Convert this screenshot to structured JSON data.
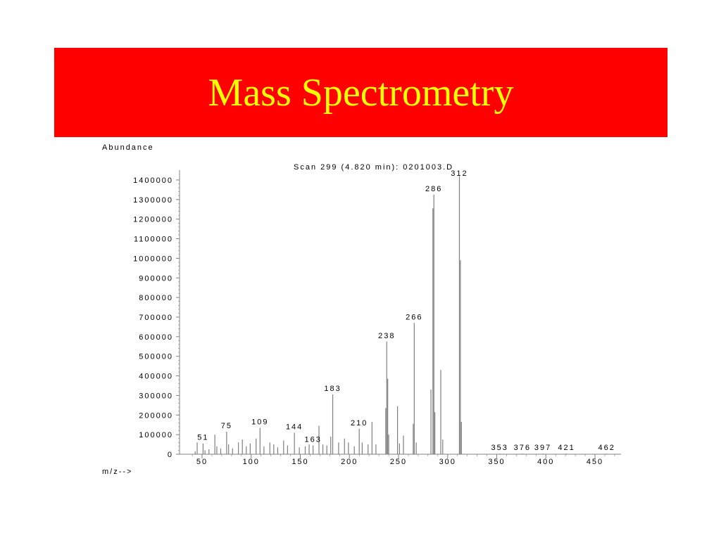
{
  "slide": {
    "title": "Mass Spectrometry"
  },
  "colors": {
    "title_bg": "#ff0000",
    "title_text": "#ffff00",
    "peak": "#7f7f7f",
    "axis": "#808080"
  },
  "chart_data": {
    "type": "bar",
    "subtitle": "Scan 299 (4.820 min): 0201003.D",
    "ylabel": "Abundance",
    "xlabel": "m/z-->",
    "xlim": [
      40,
      475
    ],
    "ylim": [
      0,
      1400000
    ],
    "x_ticks": [
      50,
      100,
      150,
      200,
      250,
      300,
      350,
      400,
      450
    ],
    "y_ticks": [
      0,
      100000,
      200000,
      300000,
      400000,
      500000,
      600000,
      700000,
      800000,
      900000,
      1000000,
      1100000,
      1200000,
      1300000,
      1400000
    ],
    "y_tick_labels": [
      "0",
      "100000",
      "200000",
      "300000",
      "400000",
      "500000",
      "600000",
      "700000",
      "800000",
      "900000",
      "1000000",
      "1100000",
      "1200000",
      "1300000",
      "1400000"
    ],
    "x_tick_labels": [
      "50",
      "100",
      "150",
      "200",
      "250",
      "300",
      "350",
      "400",
      "450"
    ],
    "peaks": [
      {
        "mz": 43,
        "abundance": 15000
      },
      {
        "mz": 45,
        "abundance": 60000
      },
      {
        "mz": 51,
        "abundance": 55000,
        "label": "51"
      },
      {
        "mz": 53,
        "abundance": 20000
      },
      {
        "mz": 57,
        "abundance": 25000
      },
      {
        "mz": 63,
        "abundance": 100000
      },
      {
        "mz": 65,
        "abundance": 40000
      },
      {
        "mz": 69,
        "abundance": 30000
      },
      {
        "mz": 75,
        "abundance": 115000,
        "label": "75"
      },
      {
        "mz": 77,
        "abundance": 50000
      },
      {
        "mz": 81,
        "abundance": 30000
      },
      {
        "mz": 87,
        "abundance": 60000
      },
      {
        "mz": 91,
        "abundance": 75000
      },
      {
        "mz": 95,
        "abundance": 40000
      },
      {
        "mz": 99,
        "abundance": 55000
      },
      {
        "mz": 105,
        "abundance": 80000
      },
      {
        "mz": 109,
        "abundance": 135000,
        "label": "109"
      },
      {
        "mz": 113,
        "abundance": 40000
      },
      {
        "mz": 119,
        "abundance": 60000
      },
      {
        "mz": 123,
        "abundance": 50000
      },
      {
        "mz": 127,
        "abundance": 35000
      },
      {
        "mz": 133,
        "abundance": 70000
      },
      {
        "mz": 137,
        "abundance": 45000
      },
      {
        "mz": 144,
        "abundance": 110000,
        "label": "144"
      },
      {
        "mz": 149,
        "abundance": 35000
      },
      {
        "mz": 155,
        "abundance": 40000
      },
      {
        "mz": 159,
        "abundance": 50000
      },
      {
        "mz": 163,
        "abundance": 45000,
        "label": "163"
      },
      {
        "mz": 169,
        "abundance": 145000
      },
      {
        "mz": 173,
        "abundance": 50000
      },
      {
        "mz": 177,
        "abundance": 45000
      },
      {
        "mz": 181,
        "abundance": 90000
      },
      {
        "mz": 183,
        "abundance": 305000,
        "label": "183"
      },
      {
        "mz": 189,
        "abundance": 60000
      },
      {
        "mz": 195,
        "abundance": 80000
      },
      {
        "mz": 199,
        "abundance": 60000
      },
      {
        "mz": 205,
        "abundance": 40000
      },
      {
        "mz": 210,
        "abundance": 130000,
        "label": "210"
      },
      {
        "mz": 213,
        "abundance": 60000
      },
      {
        "mz": 219,
        "abundance": 50000
      },
      {
        "mz": 223,
        "abundance": 165000
      },
      {
        "mz": 227,
        "abundance": 50000
      },
      {
        "mz": 237,
        "abundance": 235000
      },
      {
        "mz": 238,
        "abundance": 575000,
        "label": "238"
      },
      {
        "mz": 239,
        "abundance": 385000
      },
      {
        "mz": 240,
        "abundance": 100000
      },
      {
        "mz": 249,
        "abundance": 245000
      },
      {
        "mz": 251,
        "abundance": 55000
      },
      {
        "mz": 255,
        "abundance": 95000
      },
      {
        "mz": 265,
        "abundance": 155000
      },
      {
        "mz": 266,
        "abundance": 670000,
        "label": "266"
      },
      {
        "mz": 268,
        "abundance": 60000
      },
      {
        "mz": 283,
        "abundance": 330000
      },
      {
        "mz": 285,
        "abundance": 1255000
      },
      {
        "mz": 286,
        "abundance": 1325000,
        "label": "286"
      },
      {
        "mz": 287,
        "abundance": 215000
      },
      {
        "mz": 293,
        "abundance": 430000
      },
      {
        "mz": 295,
        "abundance": 75000
      },
      {
        "mz": 312,
        "abundance": 1420000,
        "label": "312"
      },
      {
        "mz": 313,
        "abundance": 990000
      },
      {
        "mz": 314,
        "abundance": 165000
      },
      {
        "mz": 353,
        "abundance": 3000,
        "label": "353"
      },
      {
        "mz": 376,
        "abundance": 3000,
        "label": "376"
      },
      {
        "mz": 397,
        "abundance": 3000,
        "label": "397"
      },
      {
        "mz": 421,
        "abundance": 3000,
        "label": "421"
      },
      {
        "mz": 462,
        "abundance": 3000,
        "label": "462"
      }
    ]
  }
}
